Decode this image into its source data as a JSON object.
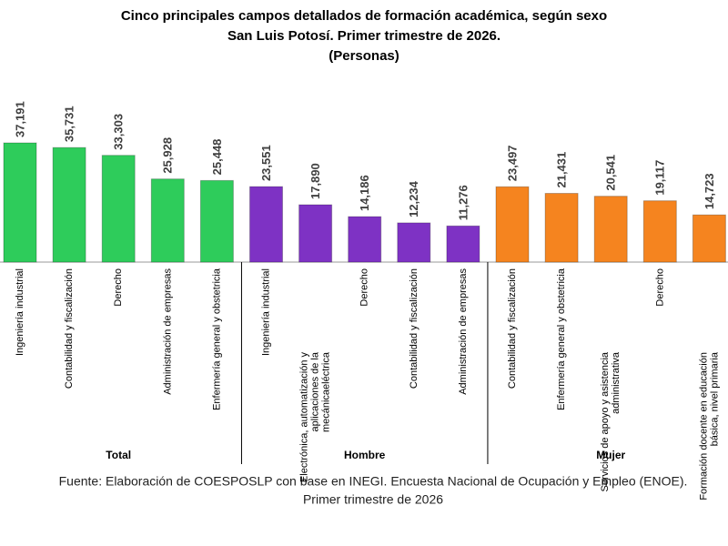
{
  "chart_data": {
    "type": "bar",
    "title": "Cinco principales campos detallados de formación académica, según sexo",
    "subtitle": "San Luis Potosí. Primer trimestre de 2026.",
    "unit_note": "(Personas)",
    "groups": [
      {
        "name": "Total",
        "color": "#2ecc5b",
        "categories": [
          "Ingeniería industrial",
          "Contabilidad y fiscalización",
          "Derecho",
          "Administración de empresas",
          "Enfermería general y obstetricia"
        ],
        "values": [
          37191,
          35731,
          33303,
          25928,
          25448
        ],
        "value_labels": [
          "37,191",
          "35,731",
          "33,303",
          "25,928",
          "25,448"
        ]
      },
      {
        "name": "Hombre",
        "color": "#7e32c4",
        "categories": [
          "Ingeniería industrial",
          "Electrónica,  automatización  y aplicaciones de la mecánicaeléctrica",
          "Derecho",
          "Contabilidad y fiscalización",
          "Administración de empresas"
        ],
        "values": [
          23551,
          17890,
          14186,
          12234,
          11276
        ],
        "value_labels": [
          "23,551",
          "17,890",
          "14,186",
          "12,234",
          "11,276"
        ]
      },
      {
        "name": "Mujer",
        "color": "#f5841f",
        "categories": [
          "Contabilidad y fiscalización",
          "Enfermería general y obstetricia",
          "Servicios de apoyo y asistencia administrativa",
          "Derecho",
          "Formación docente en educación básica, nivel primaria"
        ],
        "values": [
          23497,
          21431,
          20541,
          19117,
          14723
        ],
        "value_labels": [
          "23,497",
          "21,431",
          "20,541",
          "19,117",
          "14,723"
        ]
      }
    ],
    "source": [
      "Fuente: Elaboración de COESPOSLP con base en INEGI. Encuesta Nacional de Ocupación y Empleo (ENOE).",
      "Primer trimestre de 2026"
    ]
  }
}
